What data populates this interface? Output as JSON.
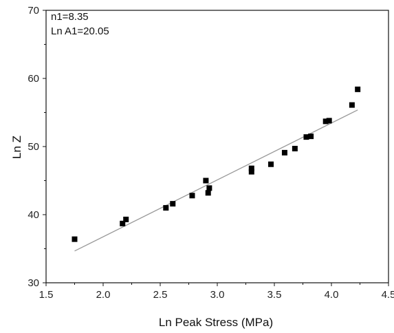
{
  "chart_data": {
    "type": "scatter",
    "xlabel": "Ln Peak Stress (MPa)",
    "ylabel": "Ln Z",
    "xlim": [
      1.5,
      4.5
    ],
    "ylim": [
      30,
      70
    ],
    "xticks": [
      "1.5",
      "2.0",
      "2.5",
      "3.0",
      "3.5",
      "4.0",
      "4.5"
    ],
    "yticks": [
      "30",
      "40",
      "50",
      "60",
      "70"
    ],
    "annotations": [
      "n1=8.35",
      "Ln A1=20.05"
    ],
    "grid": false,
    "series": [
      {
        "marker": "square",
        "color": "#000000",
        "points": [
          {
            "x": 1.75,
            "y": 36.4
          },
          {
            "x": 2.17,
            "y": 38.7
          },
          {
            "x": 2.2,
            "y": 39.3
          },
          {
            "x": 2.55,
            "y": 41.0
          },
          {
            "x": 2.61,
            "y": 41.6
          },
          {
            "x": 2.78,
            "y": 42.8
          },
          {
            "x": 2.9,
            "y": 45.0
          },
          {
            "x": 2.92,
            "y": 43.2
          },
          {
            "x": 2.93,
            "y": 43.9
          },
          {
            "x": 3.3,
            "y": 46.3
          },
          {
            "x": 3.3,
            "y": 46.8
          },
          {
            "x": 3.47,
            "y": 47.4
          },
          {
            "x": 3.59,
            "y": 49.1
          },
          {
            "x": 3.68,
            "y": 49.7
          },
          {
            "x": 3.78,
            "y": 51.4
          },
          {
            "x": 3.82,
            "y": 51.5
          },
          {
            "x": 3.95,
            "y": 53.7
          },
          {
            "x": 3.98,
            "y": 53.8
          },
          {
            "x": 4.18,
            "y": 56.1
          },
          {
            "x": 4.23,
            "y": 58.4
          }
        ]
      }
    ],
    "fit_line": {
      "color": "#9a9a9a",
      "slope": 8.35,
      "intercept": 20.05,
      "x_range": [
        1.75,
        4.23
      ]
    }
  }
}
